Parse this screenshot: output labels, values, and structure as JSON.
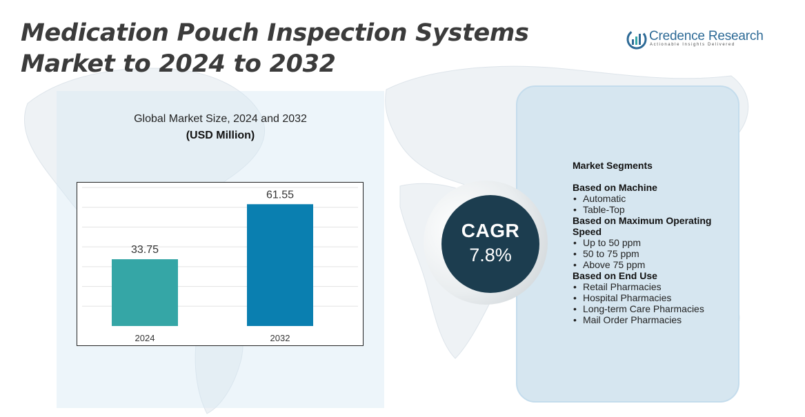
{
  "title": "Medication Pouch Inspection Systems Market to 2024 to 2032",
  "logo": {
    "name": "Credence Research",
    "tagline": "Actionable Insights Delivered"
  },
  "chart_data": {
    "type": "bar",
    "title": "Global Market Size,  2024 and 2032",
    "subtitle": "(USD Million)",
    "categories": [
      "2024",
      "2032"
    ],
    "values": [
      33.75,
      61.55
    ],
    "value_labels": [
      "33.75",
      "61.55"
    ],
    "colors": [
      "#35a6a6",
      "#0a7fb0"
    ],
    "ylim": [
      0,
      70
    ],
    "grid": true,
    "legend": "none"
  },
  "cagr": {
    "label": "CAGR",
    "value": "7.8%"
  },
  "segments": {
    "heading": "Market Segments",
    "groups": [
      {
        "title": "Based on Machine",
        "items": [
          "Automatic",
          "Table-Top"
        ]
      },
      {
        "title": "Based on Maximum Operating Speed",
        "items": [
          "Up to 50 ppm",
          "50 to 75 ppm",
          "Above 75 ppm"
        ]
      },
      {
        "title": "Based on End Use",
        "items": [
          "Retail Pharmacies",
          "Hospital Pharmacies",
          "Long-term Care Pharmacies",
          "Mail Order Pharmacies"
        ]
      }
    ]
  },
  "colors": {
    "title_text": "#3b3b3b",
    "cagr_circle": "#1c3d4f",
    "segment_panel": "#d6e6f0",
    "chart_panel": "#e6f0f8"
  }
}
